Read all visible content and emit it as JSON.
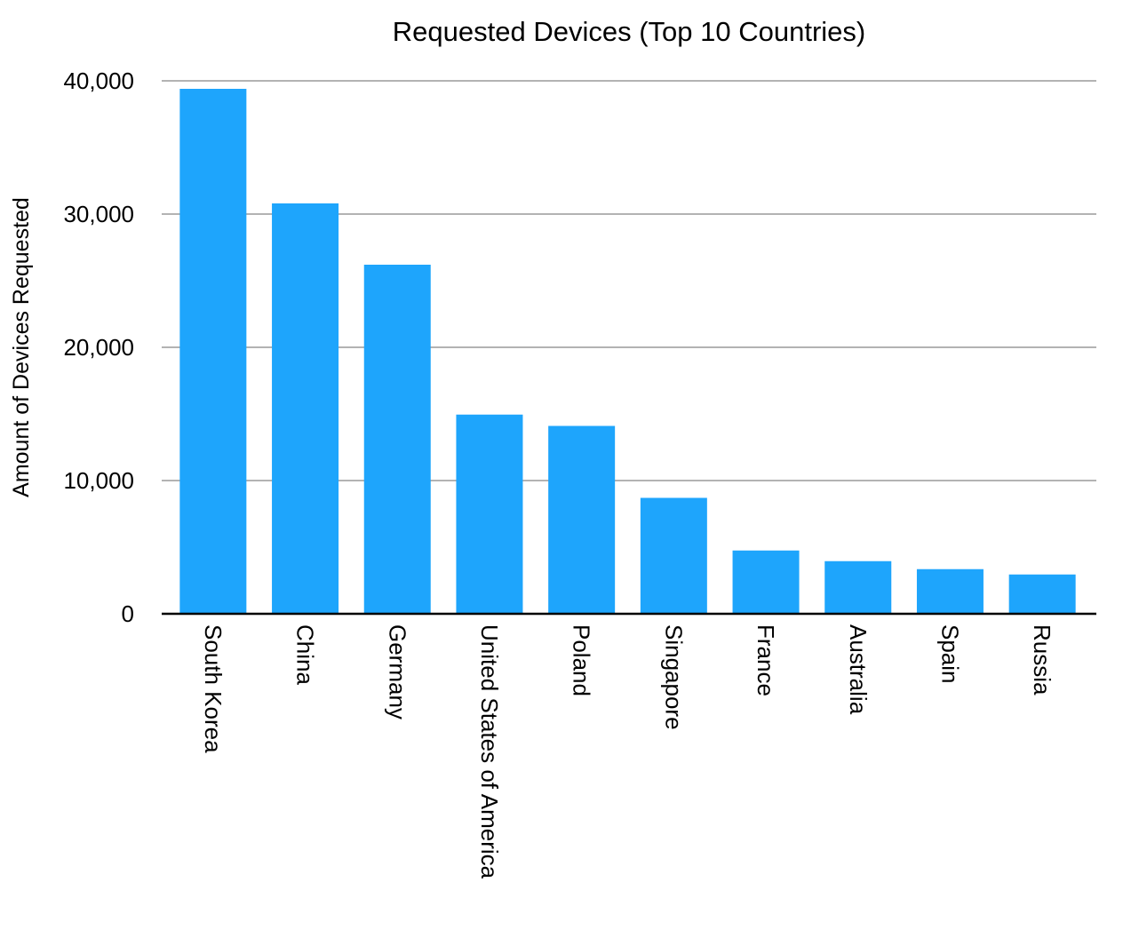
{
  "chart_data": {
    "type": "bar",
    "title": "Requested Devices (Top 10 Countries)",
    "xlabel": "",
    "ylabel": "Amount of Devices Requested",
    "ylim": [
      0,
      40000
    ],
    "yticks": [
      0,
      10000,
      20000,
      30000,
      40000
    ],
    "ytick_labels": [
      "0",
      "10,000",
      "20,000",
      "30,000",
      "40,000"
    ],
    "categories": [
      "South Korea",
      "China",
      "Germany",
      "United States of America",
      "Poland",
      "Singapore",
      "France",
      "Australia",
      "Spain",
      "Russia"
    ],
    "values": [
      39400,
      30800,
      26200,
      14950,
      14100,
      8700,
      4750,
      3950,
      3350,
      2950
    ],
    "bar_color": "#1ea5fc",
    "grid": true,
    "legend": "none"
  }
}
